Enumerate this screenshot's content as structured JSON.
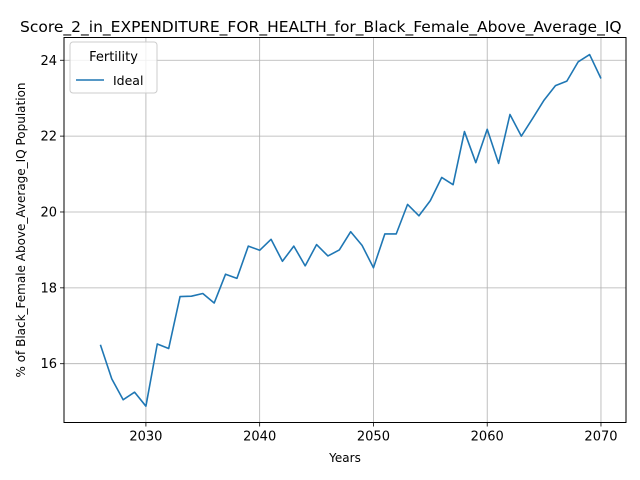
{
  "chart_data": {
    "type": "line",
    "title": "Score_2_in_EXPENDITURE_FOR_HEALTH_for_Black_Female_Above_Average_IQ",
    "xlabel": "Years",
    "ylabel": "% of Black_Female Above_Average_IQ Population",
    "xlim": [
      2022.8,
      2072.2
    ],
    "ylim": [
      14.45,
      24.6
    ],
    "xticks": [
      2030,
      2040,
      2050,
      2060,
      2070
    ],
    "yticks": [
      16,
      18,
      20,
      22,
      24
    ],
    "grid": true,
    "legend": {
      "title": "Fertility",
      "placement": "top-left"
    },
    "series": [
      {
        "name": "Ideal",
        "color": "#1f77b4",
        "x": [
          2026,
          2027,
          2028,
          2029,
          2030,
          2031,
          2032,
          2033,
          2034,
          2035,
          2036,
          2037,
          2038,
          2039,
          2040,
          2041,
          2042,
          2043,
          2044,
          2045,
          2046,
          2047,
          2048,
          2049,
          2050,
          2051,
          2052,
          2053,
          2054,
          2055,
          2056,
          2057,
          2058,
          2059,
          2060,
          2061,
          2062,
          2063,
          2064,
          2065,
          2066,
          2067,
          2068,
          2069,
          2070
        ],
        "y": [
          16.5,
          15.6,
          15.05,
          15.25,
          14.88,
          16.52,
          16.4,
          17.77,
          17.78,
          17.85,
          17.6,
          18.36,
          18.25,
          19.1,
          18.99,
          19.28,
          18.7,
          19.1,
          18.58,
          19.14,
          18.84,
          19.0,
          19.48,
          19.12,
          18.53,
          19.42,
          19.42,
          20.2,
          19.9,
          20.3,
          20.91,
          20.72,
          22.12,
          21.3,
          22.18,
          21.28,
          22.57,
          22.0,
          22.47,
          22.95,
          23.33,
          23.45,
          23.96,
          24.15,
          23.52
        ]
      }
    ]
  }
}
